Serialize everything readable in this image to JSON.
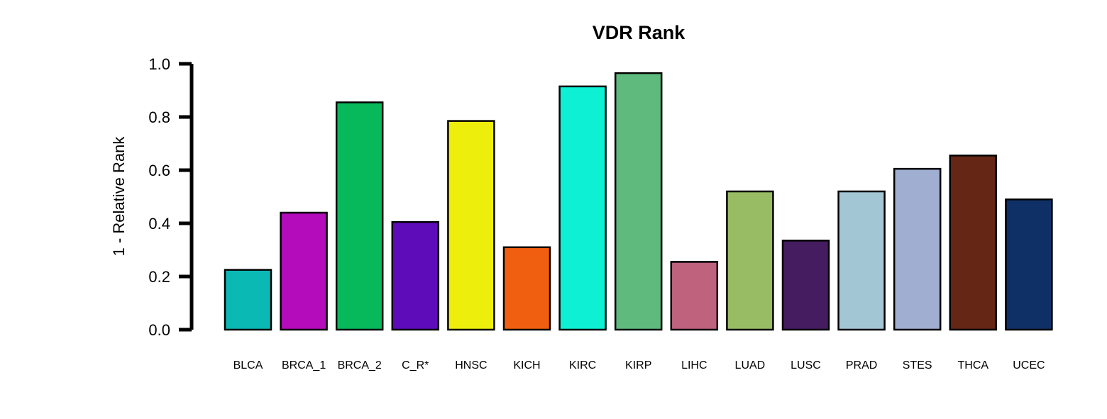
{
  "chart_data": {
    "type": "bar",
    "title": "VDR Rank",
    "xlabel": "",
    "ylabel": "1 - Relative Rank",
    "ylim": [
      0,
      1.0
    ],
    "yticks": [
      "0.0",
      "0.2",
      "0.4",
      "0.6",
      "0.8",
      "1.0"
    ],
    "grid": false,
    "categories": [
      "BLCA",
      "BRCA_1",
      "BRCA_2",
      "C_R*",
      "HNSC",
      "KICH",
      "KIRC",
      "KIRP",
      "LIHC",
      "LUAD",
      "LUSC",
      "PRAD",
      "STES",
      "THCA",
      "UCEC"
    ],
    "values": [
      0.225,
      0.44,
      0.855,
      0.405,
      0.785,
      0.31,
      0.915,
      0.965,
      0.255,
      0.52,
      0.335,
      0.52,
      0.605,
      0.655,
      0.49
    ],
    "colors": [
      "#0ab8b4",
      "#b40cba",
      "#07b95a",
      "#5e0cba",
      "#eeee0c",
      "#f05f0f",
      "#0ef0d4",
      "#5fba7e",
      "#be627e",
      "#98bc63",
      "#461c60",
      "#a2c6d4",
      "#a0aed2",
      "#652615",
      "#0f3066"
    ]
  }
}
